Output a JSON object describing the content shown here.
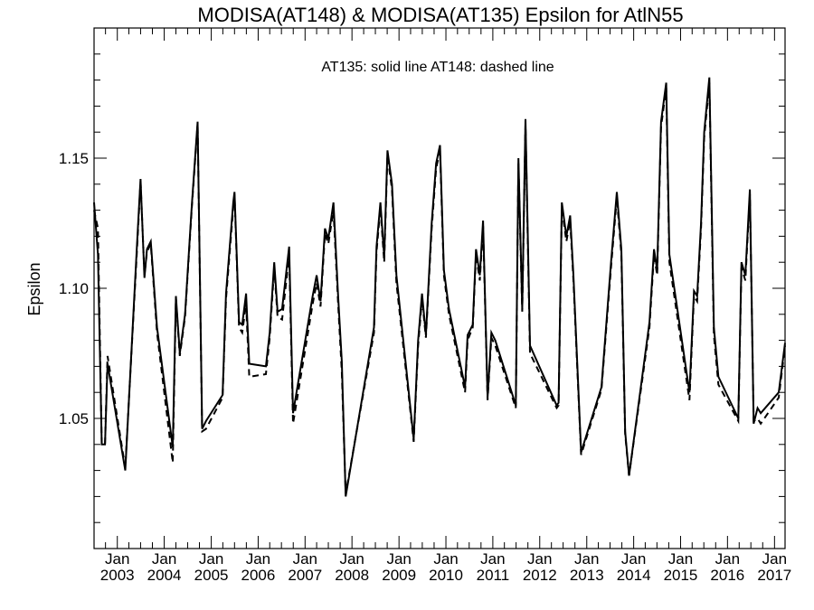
{
  "chart_data": {
    "type": "line",
    "title": "MODISA(AT148) & MODISA(AT135)  Epsilon for AtlN55",
    "annotation": "AT135: solid line   AT148: dashed line",
    "ylabel": "Epsilon",
    "xlabel": "",
    "ylim": [
      1.0,
      1.2
    ],
    "xlim": [
      "2002-07-04",
      "2017-03-24"
    ],
    "y_ticks": [
      1.05,
      1.1,
      1.15
    ],
    "y_tick_labels": [
      "1.05",
      "1.10",
      "1.15"
    ],
    "x_tick_labels": [
      {
        "month": "Jan",
        "year": "2003",
        "date": "2003-01-01"
      },
      {
        "month": "Jan",
        "year": "2004",
        "date": "2004-01-01"
      },
      {
        "month": "Jan",
        "year": "2005",
        "date": "2005-01-01"
      },
      {
        "month": "Jan",
        "year": "2006",
        "date": "2006-01-01"
      },
      {
        "month": "Jan",
        "year": "2007",
        "date": "2007-01-01"
      },
      {
        "month": "Jan",
        "year": "2008",
        "date": "2008-01-01"
      },
      {
        "month": "Jan",
        "year": "2009",
        "date": "2009-01-01"
      },
      {
        "month": "Jan",
        "year": "2010",
        "date": "2010-01-01"
      },
      {
        "month": "Jan",
        "year": "2011",
        "date": "2011-01-01"
      },
      {
        "month": "Jan",
        "year": "2012",
        "date": "2012-01-01"
      },
      {
        "month": "Jan",
        "year": "2013",
        "date": "2013-01-01"
      },
      {
        "month": "Jan",
        "year": "2014",
        "date": "2014-01-01"
      },
      {
        "month": "Jan",
        "year": "2015",
        "date": "2015-01-01"
      },
      {
        "month": "Jan",
        "year": "2016",
        "date": "2016-01-01"
      },
      {
        "month": "Jan",
        "year": "2017",
        "date": "2017-01-01"
      }
    ],
    "grid": false,
    "series": [
      {
        "name": "AT135",
        "style": "solid",
        "color": "#000000",
        "points": [
          [
            "2002-07-04",
            1.133
          ],
          [
            "2002-08-03",
            1.113
          ],
          [
            "2002-09-02",
            1.04
          ],
          [
            "2002-09-27",
            1.04
          ],
          [
            "2002-10-17",
            1.071
          ],
          [
            "2003-03-04",
            1.03
          ],
          [
            "2003-06-01",
            1.115
          ],
          [
            "2003-07-01",
            1.142
          ],
          [
            "2003-07-31",
            1.104
          ],
          [
            "2003-08-20",
            1.115
          ],
          [
            "2003-09-18",
            1.118
          ],
          [
            "2003-11-06",
            1.085
          ],
          [
            "2004-03-07",
            1.039
          ],
          [
            "2004-04-01",
            1.097
          ],
          [
            "2004-05-01",
            1.075
          ],
          [
            "2004-06-11",
            1.09
          ],
          [
            "2004-08-03",
            1.132
          ],
          [
            "2004-09-17",
            1.164
          ],
          [
            "2004-10-22",
            1.046
          ],
          [
            "2004-11-21",
            1.049
          ],
          [
            "2005-03-30",
            1.059
          ],
          [
            "2005-04-26",
            1.098
          ],
          [
            "2005-06-21",
            1.133
          ],
          [
            "2005-07-01",
            1.137
          ],
          [
            "2005-08-05",
            1.087
          ],
          [
            "2005-08-30",
            1.086
          ],
          [
            "2005-09-29",
            1.098
          ],
          [
            "2005-10-24",
            1.071
          ],
          [
            "2006-03-02",
            1.07
          ],
          [
            "2006-04-01",
            1.083
          ],
          [
            "2006-05-06",
            1.11
          ],
          [
            "2006-06-01",
            1.091
          ],
          [
            "2006-07-06",
            1.092
          ],
          [
            "2006-08-30",
            1.116
          ],
          [
            "2006-09-29",
            1.052
          ],
          [
            "2007-03-01",
            1.097
          ],
          [
            "2007-04-01",
            1.105
          ],
          [
            "2007-05-01",
            1.095
          ],
          [
            "2007-06-05",
            1.123
          ],
          [
            "2007-07-01",
            1.119
          ],
          [
            "2007-08-10",
            1.133
          ],
          [
            "2007-09-14",
            1.098
          ],
          [
            "2007-10-14",
            1.072
          ],
          [
            "2007-11-13",
            1.02
          ],
          [
            "2008-06-20",
            1.085
          ],
          [
            "2008-07-10",
            1.116
          ],
          [
            "2008-08-09",
            1.133
          ],
          [
            "2008-09-08",
            1.112
          ],
          [
            "2008-10-03",
            1.153
          ],
          [
            "2008-11-07",
            1.14
          ],
          [
            "2008-12-12",
            1.105
          ],
          [
            "2009-04-25",
            1.042
          ],
          [
            "2009-05-30",
            1.08
          ],
          [
            "2009-06-29",
            1.098
          ],
          [
            "2009-07-29",
            1.082
          ],
          [
            "2009-09-12",
            1.125
          ],
          [
            "2009-10-17",
            1.148
          ],
          [
            "2009-11-16",
            1.155
          ],
          [
            "2009-12-16",
            1.107
          ],
          [
            "2010-01-25",
            1.092
          ],
          [
            "2010-05-30",
            1.062
          ],
          [
            "2010-06-19",
            1.082
          ],
          [
            "2010-07-29",
            1.086
          ],
          [
            "2010-08-23",
            1.115
          ],
          [
            "2010-09-22",
            1.105
          ],
          [
            "2010-10-17",
            1.126
          ],
          [
            "2010-11-21",
            1.058
          ],
          [
            "2010-12-21",
            1.083
          ],
          [
            "2011-01-20",
            1.08
          ],
          [
            "2011-06-29",
            1.055
          ],
          [
            "2011-07-19",
            1.15
          ],
          [
            "2011-08-18",
            1.092
          ],
          [
            "2011-09-12",
            1.165
          ],
          [
            "2011-10-17",
            1.078
          ],
          [
            "2012-05-12",
            1.055
          ],
          [
            "2012-05-27",
            1.056
          ],
          [
            "2012-06-21",
            1.133
          ],
          [
            "2012-07-26",
            1.12
          ],
          [
            "2012-08-25",
            1.128
          ],
          [
            "2012-09-19",
            1.105
          ],
          [
            "2012-11-18",
            1.037
          ],
          [
            "2013-04-25",
            1.062
          ],
          [
            "2013-07-09",
            1.11
          ],
          [
            "2013-08-23",
            1.137
          ],
          [
            "2013-09-27",
            1.115
          ],
          [
            "2013-10-27",
            1.045
          ],
          [
            "2013-11-26",
            1.028
          ],
          [
            "2014-05-04",
            1.087
          ],
          [
            "2014-06-08",
            1.115
          ],
          [
            "2014-07-03",
            1.107
          ],
          [
            "2014-08-02",
            1.164
          ],
          [
            "2014-09-11",
            1.179
          ],
          [
            "2014-10-06",
            1.113
          ],
          [
            "2015-03-11",
            1.06
          ],
          [
            "2015-04-15",
            1.099
          ],
          [
            "2015-05-10",
            1.097
          ],
          [
            "2015-06-09",
            1.125
          ],
          [
            "2015-07-04",
            1.16
          ],
          [
            "2015-08-13",
            1.181
          ],
          [
            "2015-09-17",
            1.085
          ],
          [
            "2015-10-22",
            1.066
          ],
          [
            "2016-03-25",
            1.05
          ],
          [
            "2016-04-19",
            1.11
          ],
          [
            "2016-05-19",
            1.105
          ],
          [
            "2016-06-23",
            1.138
          ],
          [
            "2016-07-23",
            1.048
          ],
          [
            "2016-08-22",
            1.054
          ],
          [
            "2016-09-16",
            1.052
          ],
          [
            "2017-02-03",
            1.06
          ],
          [
            "2017-03-24",
            1.079
          ]
        ]
      },
      {
        "name": "AT148",
        "style": "dashed",
        "color": "#000000",
        "points": [
          [
            "2002-07-04",
            1.13
          ],
          [
            "2002-08-03",
            1.123
          ],
          [
            "2002-09-02",
            1.04
          ],
          [
            "2002-09-27",
            1.04
          ],
          [
            "2002-10-17",
            1.074
          ],
          [
            "2003-03-04",
            1.031
          ],
          [
            "2003-06-01",
            1.113
          ],
          [
            "2003-07-01",
            1.141
          ],
          [
            "2003-07-31",
            1.105
          ],
          [
            "2003-08-20",
            1.114
          ],
          [
            "2003-09-18",
            1.117
          ],
          [
            "2003-11-06",
            1.083
          ],
          [
            "2004-03-07",
            1.033
          ],
          [
            "2004-04-01",
            1.096
          ],
          [
            "2004-05-01",
            1.074
          ],
          [
            "2004-06-11",
            1.089
          ],
          [
            "2004-08-03",
            1.131
          ],
          [
            "2004-09-17",
            1.163
          ],
          [
            "2004-10-22",
            1.045
          ],
          [
            "2004-11-21",
            1.046
          ],
          [
            "2005-03-30",
            1.058
          ],
          [
            "2005-04-26",
            1.096
          ],
          [
            "2005-06-21",
            1.131
          ],
          [
            "2005-07-01",
            1.136
          ],
          [
            "2005-08-05",
            1.085
          ],
          [
            "2005-08-30",
            1.083
          ],
          [
            "2005-09-29",
            1.094
          ],
          [
            "2005-10-24",
            1.066
          ],
          [
            "2006-03-02",
            1.067
          ],
          [
            "2006-04-01",
            1.081
          ],
          [
            "2006-05-06",
            1.108
          ],
          [
            "2006-06-01",
            1.089
          ],
          [
            "2006-07-06",
            1.088
          ],
          [
            "2006-08-30",
            1.113
          ],
          [
            "2006-09-29",
            1.048
          ],
          [
            "2007-03-01",
            1.094
          ],
          [
            "2007-04-01",
            1.102
          ],
          [
            "2007-05-01",
            1.093
          ],
          [
            "2007-06-05",
            1.121
          ],
          [
            "2007-07-01",
            1.117
          ],
          [
            "2007-08-10",
            1.13
          ],
          [
            "2007-09-14",
            1.095
          ],
          [
            "2007-10-14",
            1.068
          ],
          [
            "2007-11-13",
            1.021
          ],
          [
            "2008-06-20",
            1.083
          ],
          [
            "2008-07-10",
            1.114
          ],
          [
            "2008-08-09",
            1.131
          ],
          [
            "2008-09-08",
            1.11
          ],
          [
            "2008-10-03",
            1.151
          ],
          [
            "2008-11-07",
            1.138
          ],
          [
            "2008-12-12",
            1.102
          ],
          [
            "2009-04-25",
            1.041
          ],
          [
            "2009-05-30",
            1.078
          ],
          [
            "2009-06-29",
            1.096
          ],
          [
            "2009-07-29",
            1.081
          ],
          [
            "2009-09-12",
            1.123
          ],
          [
            "2009-10-17",
            1.146
          ],
          [
            "2009-11-16",
            1.153
          ],
          [
            "2009-12-16",
            1.105
          ],
          [
            "2010-01-25",
            1.09
          ],
          [
            "2010-05-30",
            1.06
          ],
          [
            "2010-06-19",
            1.08
          ],
          [
            "2010-07-29",
            1.085
          ],
          [
            "2010-08-23",
            1.113
          ],
          [
            "2010-09-22",
            1.103
          ],
          [
            "2010-10-17",
            1.124
          ],
          [
            "2010-11-21",
            1.057
          ],
          [
            "2010-12-21",
            1.081
          ],
          [
            "2011-01-20",
            1.078
          ],
          [
            "2011-06-29",
            1.054
          ],
          [
            "2011-07-19",
            1.148
          ],
          [
            "2011-08-18",
            1.091
          ],
          [
            "2011-09-12",
            1.163
          ],
          [
            "2011-10-17",
            1.075
          ],
          [
            "2012-05-12",
            1.054
          ],
          [
            "2012-05-27",
            1.055
          ],
          [
            "2012-06-21",
            1.131
          ],
          [
            "2012-07-26",
            1.118
          ],
          [
            "2012-08-25",
            1.126
          ],
          [
            "2012-09-19",
            1.103
          ],
          [
            "2012-11-18",
            1.036
          ],
          [
            "2013-04-25",
            1.061
          ],
          [
            "2013-07-09",
            1.108
          ],
          [
            "2013-08-23",
            1.135
          ],
          [
            "2013-09-27",
            1.113
          ],
          [
            "2013-10-27",
            1.044
          ],
          [
            "2013-11-26",
            1.028
          ],
          [
            "2014-05-04",
            1.085
          ],
          [
            "2014-06-08",
            1.113
          ],
          [
            "2014-07-03",
            1.105
          ],
          [
            "2014-08-02",
            1.162
          ],
          [
            "2014-09-11",
            1.177
          ],
          [
            "2014-10-06",
            1.11
          ],
          [
            "2015-03-11",
            1.057
          ],
          [
            "2015-04-15",
            1.097
          ],
          [
            "2015-05-10",
            1.095
          ],
          [
            "2015-06-09",
            1.123
          ],
          [
            "2015-07-04",
            1.158
          ],
          [
            "2015-08-13",
            1.179
          ],
          [
            "2015-09-17",
            1.082
          ],
          [
            "2015-10-22",
            1.063
          ],
          [
            "2016-03-25",
            1.049
          ],
          [
            "2016-04-19",
            1.108
          ],
          [
            "2016-05-19",
            1.103
          ],
          [
            "2016-06-23",
            1.136
          ],
          [
            "2016-07-23",
            1.049
          ],
          [
            "2016-08-22",
            1.05
          ],
          [
            "2016-09-16",
            1.048
          ],
          [
            "2017-02-03",
            1.058
          ],
          [
            "2017-03-24",
            1.078
          ]
        ]
      }
    ]
  }
}
